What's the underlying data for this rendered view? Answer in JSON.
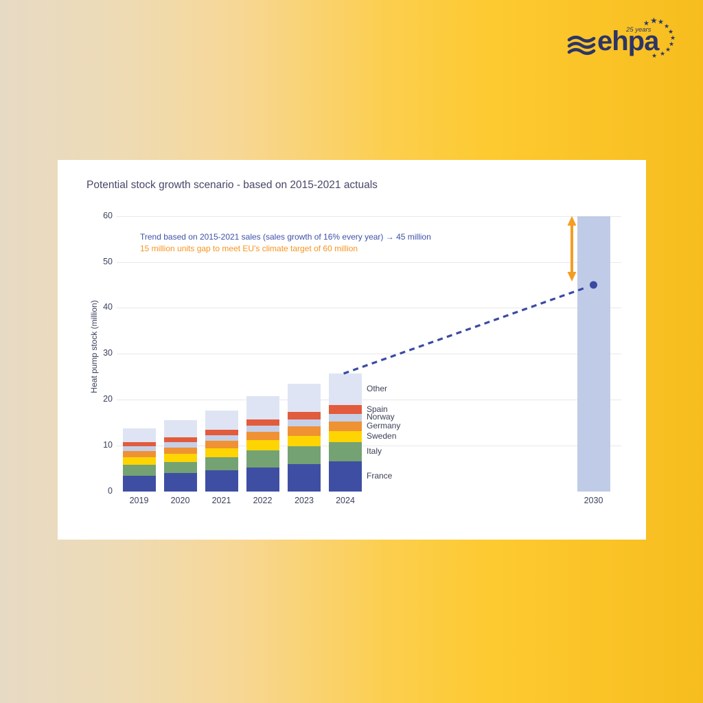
{
  "logo": {
    "brand": "ehpa",
    "badge": "25 years",
    "color": "#2d3566",
    "icon": "waves-icon"
  },
  "card": {
    "title": "Potential stock growth scenario - based on 2015-2021 actuals"
  },
  "chart_data": {
    "type": "bar",
    "stacked": true,
    "title": "Potential stock growth scenario - based on 2015-2021 actuals",
    "xlabel": "",
    "ylabel": "Heat pump stock (million)",
    "ylim": [
      0,
      60
    ],
    "yticks": [
      0,
      10,
      20,
      30,
      40,
      50,
      60
    ],
    "grid": "horizontal-light-gray",
    "legend_position": "right-of-last-actual-bar",
    "categories": [
      "2019",
      "2020",
      "2021",
      "2022",
      "2023",
      "2024"
    ],
    "series": [
      {
        "name": "France",
        "color": "#3e4fa3",
        "values": [
          3.4,
          4.0,
          4.6,
          5.3,
          6.0,
          6.6
        ]
      },
      {
        "name": "Italy",
        "color": "#74a273",
        "values": [
          2.4,
          2.4,
          2.9,
          3.6,
          3.8,
          4.1
        ]
      },
      {
        "name": "Sweden",
        "color": "#fed402",
        "values": [
          1.7,
          1.8,
          1.9,
          2.3,
          2.3,
          2.4
        ]
      },
      {
        "name": "Germany",
        "color": "#ef9233",
        "values": [
          1.3,
          1.4,
          1.6,
          1.8,
          2.1,
          2.2
        ]
      },
      {
        "name": "Norway",
        "color": "#c5cfe8",
        "values": [
          1.0,
          1.1,
          1.3,
          1.4,
          1.5,
          1.6
        ]
      },
      {
        "name": "Spain",
        "color": "#e25b3c",
        "values": [
          1.0,
          1.1,
          1.2,
          1.3,
          1.6,
          1.9
        ]
      },
      {
        "name": "Other",
        "color": "#dee4f3",
        "values": [
          3.0,
          3.7,
          4.1,
          5.1,
          6.2,
          6.9
        ]
      }
    ],
    "totals": [
      13.8,
      15.5,
      17.6,
      20.8,
      23.5,
      25.7
    ],
    "projection": {
      "category": "2030",
      "target_bar_value": 60,
      "target_bar_color": "#c0cbe7",
      "trend_point_value": 45,
      "trend_point_color": "#3a4aa3",
      "trend_line": {
        "from_category": "2024",
        "from_value": 25.7,
        "to_category": "2030",
        "to_value": 45,
        "style": "dashed",
        "color": "#3a4aa3"
      },
      "gap_arrow": {
        "from_value": 45,
        "to_value": 60,
        "style": "double-headed-vertical",
        "color": "#f49d22"
      }
    },
    "annotations": [
      {
        "text": "Trend based on 2015-2021 sales (sales growth of 16% every year) → 45 million",
        "color": "#3d51a8"
      },
      {
        "text": "15 million units gap to meet EU's climate target of 60 million",
        "color": "#f7941e"
      }
    ]
  }
}
